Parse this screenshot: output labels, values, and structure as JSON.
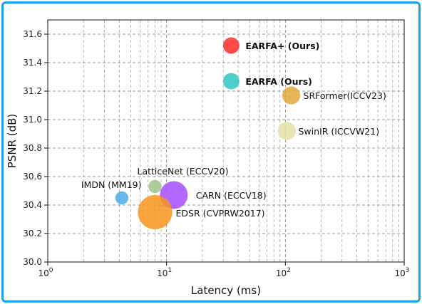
{
  "chart_data": {
    "type": "scatter",
    "xlabel": "Latency (ms)",
    "ylabel": "PSNR (dB)",
    "xscale": "log",
    "xlim": [
      1,
      1000
    ],
    "ylim": [
      30.0,
      31.7
    ],
    "grid": true,
    "x_ticks": [
      {
        "value": 1,
        "base": "10",
        "exp": "0"
      },
      {
        "value": 10,
        "base": "10",
        "exp": "1"
      },
      {
        "value": 100,
        "base": "10",
        "exp": "2"
      },
      {
        "value": 1000,
        "base": "10",
        "exp": "3"
      }
    ],
    "y_ticks": [
      "30.0",
      "30.2",
      "30.4",
      "30.6",
      "30.8",
      "31.0",
      "31.2",
      "31.4",
      "31.6"
    ],
    "points": [
      {
        "label": "EARFA+ (Ours)",
        "x": 35,
        "y": 31.52,
        "size": 1.0,
        "color": "#ff2a2a",
        "bold": true
      },
      {
        "label": "EARFA (Ours)",
        "x": 35,
        "y": 31.27,
        "size": 1.0,
        "color": "#2ec8c0",
        "bold": true
      },
      {
        "label": "SRFormer(ICCV23)",
        "x": 112,
        "y": 31.17,
        "size": 1.1,
        "color": "#e3a83c",
        "bold": false
      },
      {
        "label": "SwinIR (ICCVW21)",
        "x": 103,
        "y": 30.92,
        "size": 1.1,
        "color": "#e6dfa6",
        "bold": false
      },
      {
        "label": "LatticeNet (ECCV20)",
        "x": 8,
        "y": 30.53,
        "size": 0.8,
        "color": "#9cc48a",
        "bold": false
      },
      {
        "label": "IMDN (MM19)",
        "x": 4.2,
        "y": 30.45,
        "size": 0.8,
        "color": "#4aaee8",
        "bold": false
      },
      {
        "label": "CARN (ECCV18)",
        "x": 11.5,
        "y": 30.47,
        "size": 1.7,
        "color": "#a64dff",
        "bold": false
      },
      {
        "label": "EDSR (CVPRW2017)",
        "x": 8,
        "y": 30.35,
        "size": 2.1,
        "color": "#f7941d",
        "bold": false
      }
    ]
  }
}
